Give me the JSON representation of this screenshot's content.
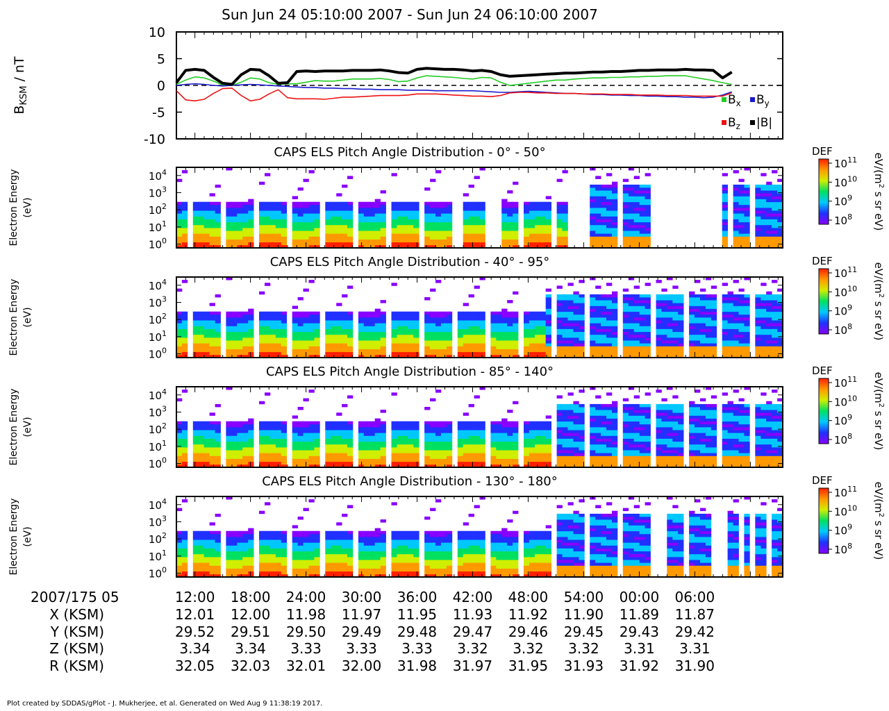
{
  "title": "Sun Jun 24 05:10:00 2007 - Sun Jun 24 06:10:00 2007",
  "footer": "Plot created by SDDAS/gPlot - J. Mukherjee, et al.  Generated on Wed Aug 9 11:38:19 2017.",
  "colors": {
    "bx": "#22cc22",
    "by": "#1a1acc",
    "bz": "#ee1111",
    "btot": "#000000"
  },
  "chart_data": [
    {
      "type": "line",
      "ylabel_main": "B",
      "ylabel_sub": "KSM",
      "ylabel_unit": " / nT",
      "ylim": [
        -10,
        10
      ],
      "yticks": [
        "10",
        "5",
        "0",
        "-5",
        "-10"
      ],
      "ytick_values": [
        10,
        5,
        0,
        -5,
        -10
      ],
      "x_unit": "minutes after 05:10:00",
      "x_range": [
        0,
        60
      ],
      "legend": [
        {
          "key": "bx",
          "base": "B",
          "sub": "x"
        },
        {
          "key": "by",
          "base": "B",
          "sub": "y"
        },
        {
          "key": "bz",
          "base": "B",
          "sub": "z"
        },
        {
          "key": "btot",
          "base": "|B|",
          "sub": ""
        }
      ],
      "x": [
        0,
        1,
        2,
        3,
        4,
        5,
        6,
        7,
        8,
        9,
        10,
        11,
        12,
        13,
        14,
        15,
        16,
        17,
        18,
        19,
        20,
        21,
        22,
        23,
        24,
        25,
        26,
        27,
        28,
        29,
        30,
        31,
        32,
        33,
        34,
        35,
        36,
        37,
        38,
        39,
        40,
        41,
        42,
        43,
        44,
        45,
        46,
        47,
        48,
        49,
        50,
        51,
        52,
        53,
        54,
        55,
        56,
        57,
        58,
        59,
        60
      ],
      "series": [
        {
          "key": "bx",
          "values": [
            0.2,
            1.0,
            1.6,
            1.4,
            0.8,
            0.1,
            0.0,
            0.6,
            1.4,
            1.2,
            0.5,
            0.2,
            0.3,
            0.3,
            0.6,
            0.9,
            0.8,
            0.8,
            1.0,
            1.2,
            1.2,
            1.2,
            1.3,
            1.1,
            0.7,
            0.8,
            1.4,
            1.8,
            1.7,
            1.6,
            1.5,
            1.3,
            1.2,
            1.5,
            1.4,
            0.6,
            0.0,
            0.2,
            0.4,
            0.6,
            0.8,
            1.0,
            1.0,
            1.2,
            1.3,
            1.4,
            1.4,
            1.5,
            1.5,
            1.6,
            1.6,
            1.7,
            1.7,
            1.8,
            1.8,
            1.8,
            1.5,
            1.2,
            0.9,
            0.5,
            0.2
          ]
        },
        {
          "key": "by",
          "values": [
            0.0,
            0.2,
            0.3,
            0.2,
            0.0,
            -0.1,
            0.0,
            0.1,
            0.2,
            0.1,
            0.0,
            -0.1,
            -0.2,
            -0.3,
            -0.4,
            -0.4,
            -0.5,
            -0.5,
            -0.6,
            -0.6,
            -0.7,
            -0.7,
            -0.8,
            -0.8,
            -0.8,
            -0.9,
            -0.9,
            -0.9,
            -1.0,
            -1.0,
            -1.0,
            -1.0,
            -1.0,
            -1.1,
            -1.2,
            -1.3,
            -1.3,
            -1.2,
            -1.1,
            -1.2,
            -1.3,
            -1.4,
            -1.5,
            -1.5,
            -1.6,
            -1.7,
            -1.7,
            -1.8,
            -1.8,
            -1.9,
            -1.9,
            -2.0,
            -2.0,
            -2.1,
            -2.1,
            -2.2,
            -2.2,
            -2.3,
            -2.2,
            -1.8,
            -1.2
          ]
        },
        {
          "key": "bz",
          "values": [
            -1.0,
            -2.7,
            -2.9,
            -2.6,
            -1.5,
            -0.6,
            -0.5,
            -1.9,
            -2.9,
            -2.6,
            -1.6,
            -0.8,
            -2.3,
            -2.5,
            -2.5,
            -2.5,
            -2.6,
            -2.4,
            -2.2,
            -2.2,
            -2.1,
            -2.0,
            -1.9,
            -1.9,
            -1.9,
            -1.8,
            -1.6,
            -1.6,
            -1.6,
            -1.7,
            -1.8,
            -1.9,
            -2.0,
            -2.0,
            -2.1,
            -1.9,
            -1.4,
            -1.3,
            -1.3,
            -1.4,
            -1.4,
            -1.5,
            -1.5,
            -1.5,
            -1.6,
            -1.6,
            -1.6,
            -1.7,
            -1.7,
            -1.7,
            -1.8,
            -1.8,
            -1.8,
            -1.9,
            -1.9,
            -1.9,
            -2.0,
            -2.0,
            -2.0,
            -2.0,
            -1.4
          ]
        },
        {
          "key": "btot",
          "values": [
            0.5,
            2.8,
            3.0,
            2.8,
            1.5,
            0.4,
            0.2,
            2.0,
            3.0,
            2.9,
            1.8,
            0.4,
            0.5,
            2.6,
            2.7,
            2.6,
            2.7,
            2.7,
            2.7,
            2.8,
            2.8,
            2.8,
            2.9,
            2.7,
            2.4,
            2.3,
            3.0,
            3.2,
            3.1,
            3.0,
            3.0,
            2.9,
            2.7,
            2.8,
            2.6,
            2.0,
            1.7,
            1.8,
            1.9,
            2.0,
            2.1,
            2.2,
            2.3,
            2.3,
            2.4,
            2.5,
            2.5,
            2.6,
            2.6,
            2.7,
            2.8,
            2.8,
            2.9,
            2.9,
            2.9,
            3.0,
            2.9,
            2.9,
            2.8,
            1.4,
            2.5
          ]
        }
      ]
    },
    {
      "type": "heatmap",
      "title": "CAPS ELS Pitch Angle Distribution - 0° - 50°",
      "ylabel": "Electron Energy",
      "yunit": "(eV)",
      "y_scale": "log",
      "yticks": [
        {
          "base": "10",
          "exp": "4"
        },
        {
          "base": "10",
          "exp": "3"
        },
        {
          "base": "10",
          "exp": "2"
        },
        {
          "base": "10",
          "exp": "1"
        },
        {
          "base": "10",
          "exp": "0"
        }
      ],
      "ylim": [
        0.6,
        30000
      ],
      "flux_rise_minute": 42,
      "data_gaps_minutes": [
        [
          30.3,
          30.7
        ],
        [
          33.5,
          35.0
        ],
        [
          42.4,
          44.0
        ],
        [
          52.0,
          59.2
        ],
        [
          59.5,
          60.0
        ]
      ],
      "colorbar": {
        "label": "DEF",
        "unit_pre": "eV/(m",
        "unit_sup": "2",
        "unit_post": " s sr eV)",
        "ticks": [
          {
            "base": "10",
            "exp": "11"
          },
          {
            "base": "10",
            "exp": "10"
          },
          {
            "base": "10",
            "exp": "9"
          },
          {
            "base": "10",
            "exp": "8"
          }
        ]
      }
    },
    {
      "type": "heatmap",
      "title": "CAPS ELS Pitch Angle Distribution - 40° - 95°",
      "ylabel": "Electron Energy",
      "yunit": "(eV)",
      "y_scale": "log",
      "yticks": [
        {
          "base": "10",
          "exp": "4"
        },
        {
          "base": "10",
          "exp": "3"
        },
        {
          "base": "10",
          "exp": "2"
        },
        {
          "base": "10",
          "exp": "1"
        },
        {
          "base": "10",
          "exp": "0"
        }
      ],
      "ylim": [
        0.6,
        30000
      ],
      "flux_rise_minute": 40,
      "data_gaps_minutes": [],
      "colorbar": {
        "label": "DEF",
        "unit_pre": "eV/(m",
        "unit_sup": "2",
        "unit_post": " s sr eV)",
        "ticks": [
          {
            "base": "10",
            "exp": "11"
          },
          {
            "base": "10",
            "exp": "10"
          },
          {
            "base": "10",
            "exp": "9"
          },
          {
            "base": "10",
            "exp": "8"
          }
        ]
      }
    },
    {
      "type": "heatmap",
      "title": "CAPS ELS Pitch Angle Distribution - 85° - 140°",
      "ylabel": "Electron Energy",
      "yunit": "(eV)",
      "y_scale": "log",
      "yticks": [
        {
          "base": "10",
          "exp": "4"
        },
        {
          "base": "10",
          "exp": "3"
        },
        {
          "base": "10",
          "exp": "2"
        },
        {
          "base": "10",
          "exp": "1"
        },
        {
          "base": "10",
          "exp": "0"
        }
      ],
      "ylim": [
        0.6,
        30000
      ],
      "flux_rise_minute": 41,
      "data_gaps_minutes": [],
      "colorbar": {
        "label": "DEF",
        "unit_pre": "eV/(m",
        "unit_sup": "2",
        "unit_post": " s sr eV)",
        "ticks": [
          {
            "base": "10",
            "exp": "11"
          },
          {
            "base": "10",
            "exp": "10"
          },
          {
            "base": "10",
            "exp": "9"
          },
          {
            "base": "10",
            "exp": "8"
          }
        ]
      }
    },
    {
      "type": "heatmap",
      "title": "CAPS ELS Pitch Angle Distribution - 130° - 180°",
      "ylabel": "Electron Energy",
      "yunit": "(eV)",
      "y_scale": "log",
      "yticks": [
        {
          "base": "10",
          "exp": "4"
        },
        {
          "base": "10",
          "exp": "3"
        },
        {
          "base": "10",
          "exp": "2"
        },
        {
          "base": "10",
          "exp": "1"
        },
        {
          "base": "10",
          "exp": "0"
        }
      ],
      "ylim": [
        0.6,
        30000
      ],
      "flux_rise_minute": 41,
      "data_gaps_minutes": [
        [
          45.0,
          45.5
        ],
        [
          51.3,
          53.0
        ],
        [
          55.0,
          55.3
        ],
        [
          57.6,
          59.8
        ],
        [
          60.7,
          61.3
        ],
        [
          64.0,
          64.4
        ]
      ],
      "colorbar": {
        "label": "DEF",
        "unit_pre": "eV/(m",
        "unit_sup": "2",
        "unit_post": " s sr eV)",
        "ticks": [
          {
            "base": "10",
            "exp": "11"
          },
          {
            "base": "10",
            "exp": "10"
          },
          {
            "base": "10",
            "exp": "9"
          },
          {
            "base": "10",
            "exp": "8"
          }
        ]
      }
    }
  ],
  "ephemeris": {
    "rows": [
      {
        "label": "2007/175 05",
        "values": [
          "12:00",
          "18:00",
          "24:00",
          "30:00",
          "36:00",
          "42:00",
          "48:00",
          "54:00",
          "00:00",
          "06:00"
        ]
      },
      {
        "label": "X (KSM)",
        "values": [
          "12.01",
          "12.00",
          "11.98",
          "11.97",
          "11.95",
          "11.93",
          "11.92",
          "11.90",
          "11.89",
          "11.87"
        ]
      },
      {
        "label": "Y (KSM)",
        "values": [
          "29.52",
          "29.51",
          "29.50",
          "29.49",
          "29.48",
          "29.47",
          "29.46",
          "29.45",
          "29.43",
          "29.42"
        ]
      },
      {
        "label": "Z (KSM)",
        "values": [
          "3.34",
          "3.34",
          "3.33",
          "3.33",
          "3.33",
          "3.32",
          "3.32",
          "3.32",
          "3.31",
          "3.31"
        ]
      },
      {
        "label": "R (KSM)",
        "values": [
          "32.05",
          "32.03",
          "32.01",
          "32.00",
          "31.98",
          "31.97",
          "31.95",
          "31.93",
          "31.92",
          "31.90"
        ]
      }
    ]
  }
}
